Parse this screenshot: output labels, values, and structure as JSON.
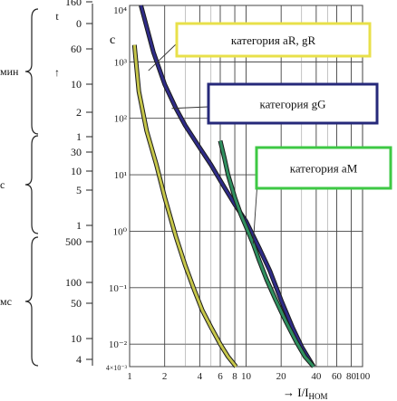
{
  "chart_data": {
    "type": "line",
    "title": "",
    "xlabel": "→ I/I",
    "xlabel_sub": "НОМ",
    "ylabel": "c",
    "x_scale": "log",
    "y_scale": "log",
    "xlim": [
      1,
      100
    ],
    "ylim": [
      0.004,
      10000
    ],
    "grid": true,
    "x_ticks": [
      1,
      2,
      4,
      6,
      8,
      10,
      20,
      40,
      60,
      80,
      100
    ],
    "x_tick_labels": [
      "1",
      "2",
      "4",
      "6",
      "8",
      "10",
      "20",
      "40",
      "60",
      "80",
      "100"
    ],
    "y_ticks": [
      0.004,
      0.01,
      0.1,
      1,
      10,
      100,
      1000,
      10000
    ],
    "y_tick_labels": [
      "4×10⁻³",
      "10⁻²",
      "10⁻¹",
      "10⁰",
      "10¹",
      "10²",
      "10³",
      "10⁴"
    ],
    "time_scale": {
      "arrow_label": "t",
      "min": {
        "unit": "мин",
        "marks": [
          "160",
          "0",
          "60",
          "10",
          "2",
          "1"
        ],
        "arrow": "↑"
      },
      "s": {
        "unit": "с",
        "marks": [
          "30",
          "10",
          "5",
          "1"
        ]
      },
      "ms": {
        "unit": "мс",
        "marks": [
          "500",
          "100",
          "50",
          "10",
          "4"
        ]
      }
    },
    "series": [
      {
        "name": "категория aR, gR",
        "color": "#c6c64a",
        "x": [
          1.1,
          1.2,
          1.4,
          1.7,
          2.0,
          2.5,
          3.0,
          3.6,
          4.2,
          5.0,
          6.0,
          7.0,
          8.2
        ],
        "y": [
          2000,
          300,
          60,
          15,
          4,
          0.8,
          0.25,
          0.09,
          0.04,
          0.02,
          0.01,
          0.006,
          0.004
        ]
      },
      {
        "name": "категория gG",
        "color": "#2e2b86",
        "x": [
          1.25,
          1.6,
          2.0,
          2.5,
          3.0,
          4.0,
          5.0,
          6.5,
          8.0,
          10.0,
          13.0,
          16.0,
          20.0,
          25.0,
          30.0,
          38.0
        ],
        "y": [
          10000,
          1500,
          400,
          150,
          75,
          30,
          15,
          6,
          3,
          1.5,
          0.5,
          0.2,
          0.06,
          0.02,
          0.009,
          0.004
        ]
      },
      {
        "name": "категория aM",
        "color": "#2f8f5f",
        "x": [
          6.0,
          6.5,
          7.0,
          8.0,
          9.0,
          10.0,
          11.5,
          13.0,
          15.0,
          18.0,
          22.0,
          27.0,
          32.0,
          38.0
        ],
        "y": [
          40,
          20,
          10,
          4,
          2,
          1.2,
          0.6,
          0.3,
          0.14,
          0.06,
          0.025,
          0.011,
          0.006,
          0.004
        ]
      }
    ]
  }
}
